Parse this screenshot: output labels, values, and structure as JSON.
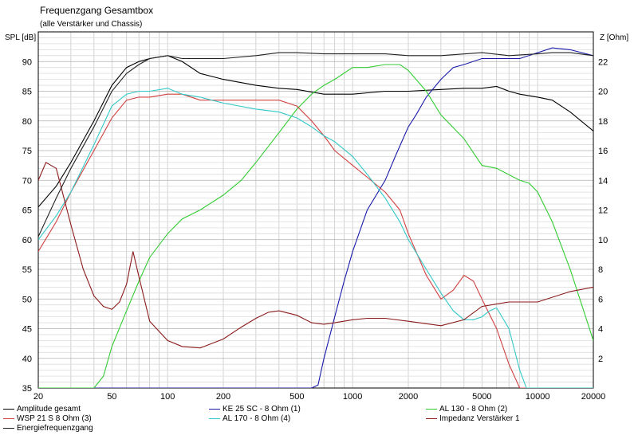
{
  "title": "Frequenzgang Gesamtbox",
  "subtitle": "(alle Verstärker und Chassis)",
  "chart_data": {
    "type": "line",
    "xscale": "log",
    "xlim": [
      20,
      20000
    ],
    "ylim": [
      35,
      95
    ],
    "y2lim": [
      0,
      24
    ],
    "ylabel": "SPL [dB]",
    "y2label": "Z [Ohm]",
    "grid": true,
    "x_ticks": [
      20,
      50,
      100,
      200,
      500,
      1000,
      2000,
      5000,
      10000,
      20000
    ],
    "x_tick_labels": [
      "20",
      "50",
      "100",
      "200",
      "500",
      "1000",
      "2000",
      "5000",
      "10000",
      "20000"
    ],
    "y_ticks": [
      35,
      40,
      45,
      50,
      55,
      60,
      65,
      70,
      75,
      80,
      85,
      90
    ],
    "y_tick_labels": [
      "35",
      "40",
      "45",
      "50",
      "55",
      "60",
      "65",
      "70",
      "75",
      "80",
      "85",
      "90"
    ],
    "y2_ticks": [
      2,
      4,
      6,
      8,
      10,
      12,
      14,
      16,
      18,
      20,
      22
    ],
    "y2_tick_labels": [
      "2",
      "4",
      "6",
      "8",
      "10",
      "12",
      "14",
      "16",
      "18",
      "20",
      "22"
    ],
    "series": [
      {
        "name": "Amplitude gesamt",
        "color": "#000000",
        "axis": "left",
        "x": [
          20,
          25,
          30,
          40,
          50,
          60,
          70,
          80,
          100,
          120,
          150,
          200,
          300,
          400,
          500,
          700,
          1000,
          1500,
          2000,
          3000,
          4000,
          5000,
          6000,
          7000,
          8000,
          10000,
          12000,
          15000,
          20000
        ],
        "y": [
          65.5,
          69,
          73,
          80,
          86,
          89,
          90,
          90.5,
          91,
          90,
          88,
          87,
          86,
          85.5,
          85.3,
          84.5,
          84.5,
          85,
          85,
          85.3,
          85.5,
          85.5,
          85.8,
          85,
          84.5,
          84,
          83.5,
          81.5,
          78.3
        ]
      },
      {
        "name": "KE 25 SC - 8 Ohm  (1)",
        "color": "#1a1aaa",
        "axis": "left",
        "x": [
          20,
          500,
          600,
          650,
          700,
          800,
          900,
          1000,
          1200,
          1500,
          1700,
          2000,
          2200,
          2500,
          3000,
          3500,
          4000,
          5000,
          6000,
          7000,
          8000,
          10000,
          12000,
          15000,
          20000
        ],
        "y": [
          35,
          35,
          35,
          35.5,
          40,
          47,
          53,
          58,
          65,
          70,
          74,
          79,
          81,
          84,
          87,
          89,
          89.5,
          90.5,
          90.5,
          90.5,
          90.5,
          91.5,
          92.3,
          92,
          91
        ]
      },
      {
        "name": "AL 130 - 8 Ohm (2)",
        "color": "#33cc33",
        "axis": "left",
        "x": [
          20,
          40,
          45,
          50,
          60,
          70,
          80,
          100,
          120,
          150,
          200,
          250,
          300,
          400,
          500,
          600,
          700,
          800,
          1000,
          1200,
          1500,
          1800,
          2000,
          2500,
          3000,
          4000,
          5000,
          6000,
          8000,
          9000,
          10000,
          12000,
          15000,
          20000
        ],
        "y": [
          35,
          35,
          37,
          42,
          48,
          53,
          57,
          61,
          63.5,
          65,
          67.5,
          70,
          73,
          78,
          82,
          84.5,
          86,
          87,
          89,
          89,
          89.5,
          89.5,
          88.5,
          85,
          81,
          77,
          72.5,
          72,
          70,
          69.5,
          68,
          63,
          55,
          43
        ]
      },
      {
        "name": "WSP 21 S 8 Ohm (3)",
        "color": "#d04040",
        "axis": "left",
        "x": [
          20,
          25,
          30,
          40,
          50,
          60,
          70,
          80,
          100,
          120,
          150,
          200,
          250,
          300,
          400,
          500,
          600,
          700,
          800,
          1000,
          1200,
          1500,
          1800,
          2000,
          2500,
          3000,
          3500,
          4000,
          4500,
          5000,
          6000,
          7000,
          8000,
          20000
        ],
        "y": [
          58,
          63,
          68,
          75,
          80.5,
          83.5,
          84,
          84,
          84.5,
          84.5,
          83.5,
          83.5,
          83.5,
          83.5,
          83.5,
          82.5,
          80,
          77.5,
          75,
          72.5,
          70.5,
          68,
          65,
          61,
          54,
          50,
          51.5,
          54,
          53,
          50,
          45,
          39,
          35,
          35
        ]
      },
      {
        "name": "AL 170 - 8 Ohm (4)",
        "color": "#33c8c8",
        "axis": "left",
        "x": [
          20,
          25,
          30,
          40,
          50,
          60,
          70,
          80,
          100,
          120,
          150,
          200,
          300,
          400,
          500,
          600,
          700,
          800,
          1000,
          1200,
          1500,
          1800,
          2000,
          2500,
          3000,
          3500,
          4000,
          4500,
          5000,
          5500,
          6000,
          7000,
          8000,
          8700,
          20000
        ],
        "y": [
          60,
          64,
          68,
          76,
          82.5,
          84.5,
          85,
          85,
          85.5,
          84.5,
          84,
          83,
          82,
          81.5,
          80.5,
          79,
          77.5,
          76.5,
          74,
          71,
          67,
          63,
          60,
          55,
          51,
          48,
          46.5,
          46.5,
          47,
          48,
          48.5,
          45,
          38,
          35,
          35
        ]
      },
      {
        "name": "Impedanz Verstärker 1",
        "color": "#8b1a1a",
        "axis": "right",
        "x": [
          20,
          22,
          25,
          30,
          35,
          40,
          45,
          50,
          55,
          60,
          65,
          70,
          80,
          100,
          120,
          150,
          200,
          250,
          300,
          350,
          400,
          500,
          600,
          700,
          800,
          1000,
          1200,
          1500,
          2000,
          3000,
          4000,
          5000,
          7000,
          10000,
          15000,
          20000
        ],
        "y": [
          14,
          15.2,
          14.8,
          11,
          8,
          6.2,
          5.5,
          5.3,
          5.8,
          7,
          9.2,
          7.5,
          4.5,
          3.2,
          2.8,
          2.7,
          3.3,
          4.1,
          4.7,
          5.1,
          5.2,
          4.9,
          4.4,
          4.3,
          4.4,
          4.6,
          4.7,
          4.7,
          4.5,
          4.2,
          4.6,
          5.5,
          5.8,
          5.8,
          6.5,
          6.8
        ]
      },
      {
        "name": "Energiefrequenzgang",
        "color": "#222222",
        "axis": "left",
        "x": [
          20,
          25,
          30,
          40,
          50,
          60,
          70,
          80,
          100,
          120,
          150,
          200,
          300,
          400,
          500,
          700,
          1000,
          1500,
          2000,
          3000,
          5000,
          7000,
          10000,
          12000,
          15000,
          20000
        ],
        "y": [
          60.5,
          67,
          72,
          79,
          85,
          88,
          89.5,
          90.5,
          91,
          90.5,
          90.5,
          90.5,
          91,
          91.5,
          91.5,
          91.3,
          91.3,
          91.3,
          91,
          91,
          91.5,
          91,
          91.3,
          91.5,
          91.5,
          91
        ]
      }
    ]
  }
}
